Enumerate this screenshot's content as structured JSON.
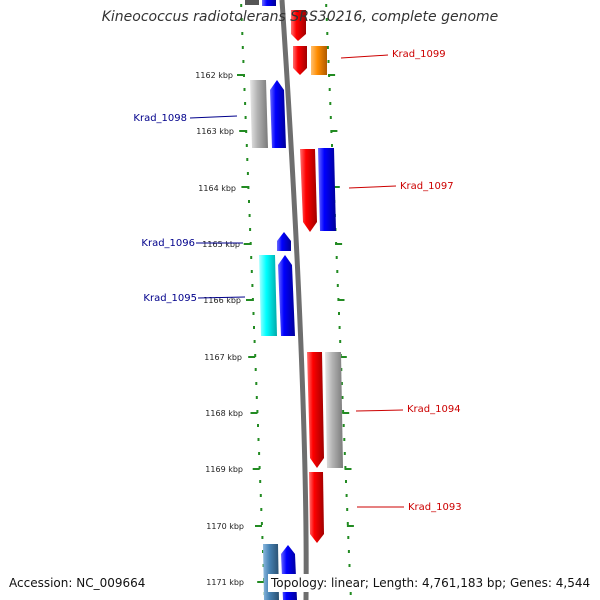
{
  "title": "Kineococcus radiotolerans SRS30216, complete genome",
  "footer": {
    "accession": "Accession: NC_009664",
    "summary": "Topology: linear; Length: 4,761,183 bp; Genes: 4,544"
  },
  "ticks": [
    "1162 kbp",
    "1163 kbp",
    "1164 kbp",
    "1165 kbp",
    "1166 kbp",
    "1167 kbp",
    "1168 kbp",
    "1169 kbp",
    "1170 kbp",
    "1171 kbp"
  ],
  "genes": {
    "krad_1099": "Krad_1099",
    "krad_1098": "Krad_1098",
    "krad_1097": "Krad_1097",
    "krad_1096": "Krad_1096",
    "krad_1095": "Krad_1095",
    "krad_1094": "Krad_1094",
    "krad_1093": "Krad_1093"
  },
  "colors": {
    "red": "#ff0000",
    "blue": "#0000ff",
    "gray": "#b4b4b4",
    "orange": "#ff8c00",
    "cyan": "#00ffff",
    "steel": "#4682b4",
    "dotted": "#228b22",
    "label_left": "#00008b",
    "label_right": "#cc0000"
  }
}
